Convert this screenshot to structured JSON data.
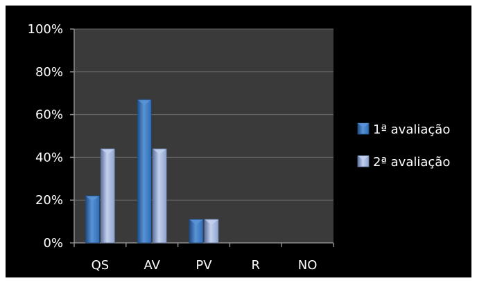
{
  "chart_data": {
    "type": "bar",
    "categories": [
      "QS",
      "AV",
      "PV",
      "R",
      "NO"
    ],
    "series": [
      {
        "name": "1ª avaliação",
        "values": [
          22,
          67,
          11,
          0,
          0
        ],
        "color": "#2f6db5",
        "highlight": "#5a93d6",
        "shadow": "#1d4a82"
      },
      {
        "name": "2ª avaliação",
        "values": [
          44,
          44,
          11,
          0,
          0
        ],
        "color": "#8fa3cc",
        "highlight": "#c2d1ee",
        "shadow": "#5f729e"
      }
    ],
    "ylim": [
      0,
      100
    ],
    "yticks": [
      0,
      20,
      40,
      60,
      80,
      100
    ],
    "ytick_labels": [
      "0%",
      "20%",
      "40%",
      "60%",
      "80%",
      "100%"
    ],
    "grid": true,
    "legend_position": "right",
    "colors": {
      "background": "#000000",
      "plot_area": "#3a3a3a",
      "grid": "#6b6b6b",
      "axis": "#8c8c8c",
      "text": "#ffffff"
    },
    "title": "",
    "xlabel": "",
    "ylabel": ""
  }
}
